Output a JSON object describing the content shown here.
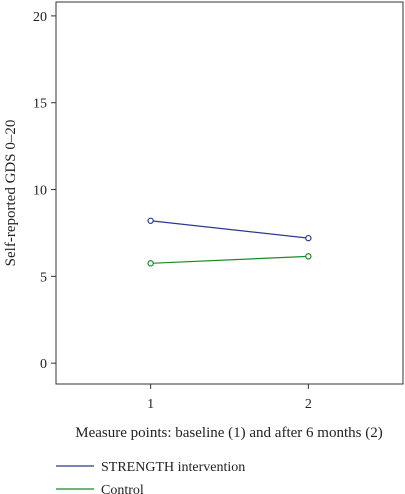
{
  "chart_data": {
    "type": "line",
    "xlabel": "Measure points: baseline (1) and after 6 months (2)",
    "ylabel": "Self-reported GDS 0–20",
    "x": [
      1,
      2
    ],
    "xlim": [
      0.4,
      2.6
    ],
    "ylim": [
      -1.2,
      20.8
    ],
    "xticks": [
      1,
      2
    ],
    "yticks": [
      0,
      5,
      10,
      15,
      20
    ],
    "grid": false,
    "legend_position": "bottom",
    "series": [
      {
        "name": "STRENGTH intervention",
        "values": [
          8.2,
          7.2
        ],
        "color": "#2b3a8f"
      },
      {
        "name": "Control",
        "values": [
          5.75,
          6.15
        ],
        "color": "#1a8a2a"
      }
    ]
  }
}
